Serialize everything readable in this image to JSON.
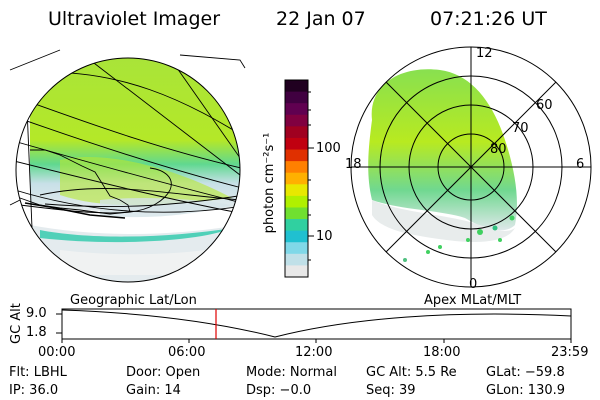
{
  "header": {
    "title": "Ultraviolet Imager",
    "date": "22 Jan 07",
    "time": "07:21:26 UT"
  },
  "colorbar": {
    "unit_label": "photon cm⁻²s⁻¹",
    "ticks": [
      "100",
      "10"
    ],
    "colors": [
      "#200020",
      "#400040",
      "#600050",
      "#800040",
      "#a00020",
      "#c00010",
      "#e03000",
      "#ff8000",
      "#ffb000",
      "#e8e800",
      "#b0f000",
      "#70e030",
      "#30d0a0",
      "#20c0d0",
      "#80d8e8",
      "#c0e0e8",
      "#e8e8e8"
    ]
  },
  "polar": {
    "labels": {
      "top": "12",
      "left": "18",
      "right": "6",
      "bottom": "0",
      "r60": "60",
      "r70": "70",
      "r80": "80"
    }
  },
  "timeline": {
    "left_label": "Geographic Lat/Lon",
    "right_label": "Apex MLat/MLT",
    "axis_title": "GC Alt",
    "y_ticks": [
      "9.0",
      "1.8"
    ],
    "x_ticks": [
      "00:00",
      "06:00",
      "12:00",
      "18:00",
      "23:59"
    ],
    "marker_time": "07:21"
  },
  "info": {
    "flt": "Flt: LBHL",
    "door": "Door: Open",
    "mode": "Mode: Normal",
    "gc_alt": "GC Alt: 5.5 Re",
    "glat": "GLat: −59.8",
    "ip": "IP: 36.0",
    "gain": "Gain: 14",
    "dsp": "Dsp:   −0.0",
    "seq": "Seq: 39",
    "glon": "GLon: 130.9"
  }
}
